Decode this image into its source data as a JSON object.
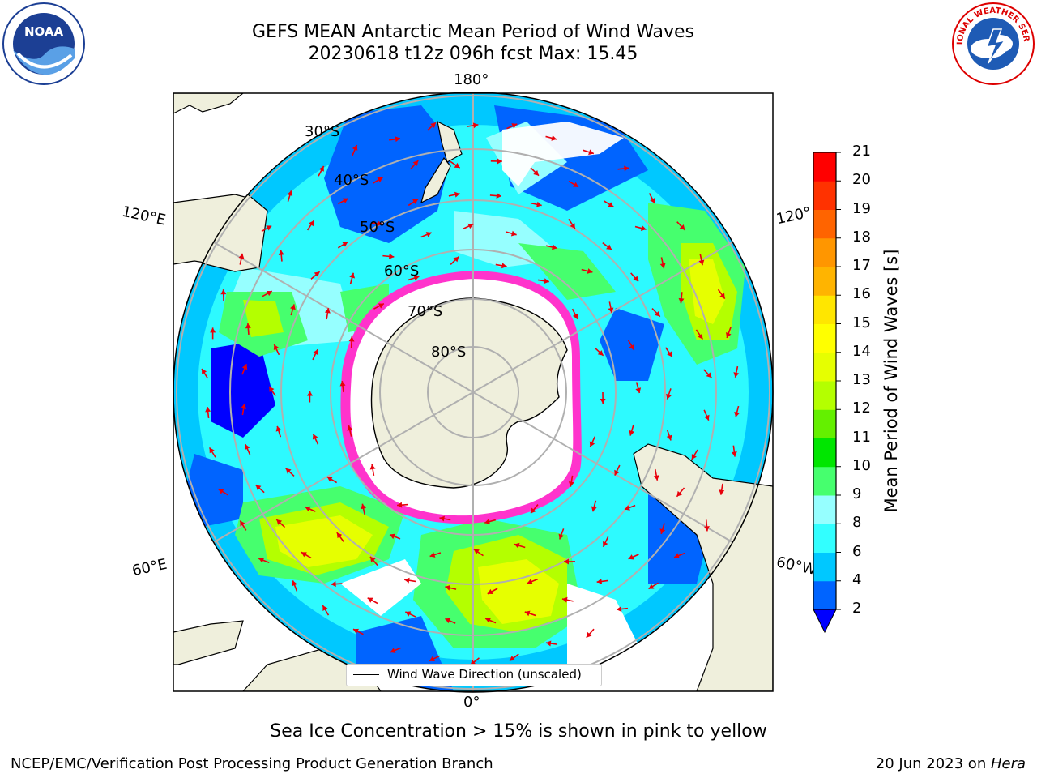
{
  "title": {
    "line1": "GEFS MEAN Antarctic Mean Period of Wind Waves",
    "line2": "20230618 t12z 096h fcst   Max: 15.45"
  },
  "map": {
    "projection": "south-polar-stereographic",
    "lon_labels": {
      "top": "180°",
      "bottom": "0°",
      "left_upper": "120°E",
      "left_lower": "60°E",
      "right_upper": "120°",
      "right_lower": "60°W"
    },
    "lat_labels": [
      "30°S",
      "40°S",
      "50°S",
      "60°S",
      "70°S",
      "80°S"
    ],
    "land_color": "#efefdc",
    "ice_color": "#ff33cc",
    "arrow_color": "#e8000b",
    "legend_label": "Wind Wave Direction (unscaled)"
  },
  "colorbar": {
    "label": "Mean Period of Wind Waves [s]",
    "ticks": [
      "2",
      "4",
      "6",
      "8",
      "9",
      "10",
      "11",
      "12",
      "13",
      "14",
      "15",
      "16",
      "17",
      "18",
      "19",
      "20",
      "21"
    ],
    "colors": [
      "#0064ff",
      "#00c8ff",
      "#32ffff",
      "#96ffff",
      "#46ff6e",
      "#00e600",
      "#64f000",
      "#b4ff00",
      "#e6ff00",
      "#ffff00",
      "#ffe600",
      "#ffb400",
      "#ff9600",
      "#ff6400",
      "#ff3200",
      "#ff0000"
    ],
    "extend_color": "#0000ff"
  },
  "note": "Sea Ice Concentration > 15% is shown in pink to yellow",
  "footer": {
    "left": "NCEP/EMC/Verification Post Processing Product Generation Branch",
    "right_date": "20 Jun 2023 on ",
    "right_host": "Hera"
  },
  "logos": {
    "left_text": "NOAA",
    "right_text": "NATIONAL WEATHER SERVICE"
  }
}
